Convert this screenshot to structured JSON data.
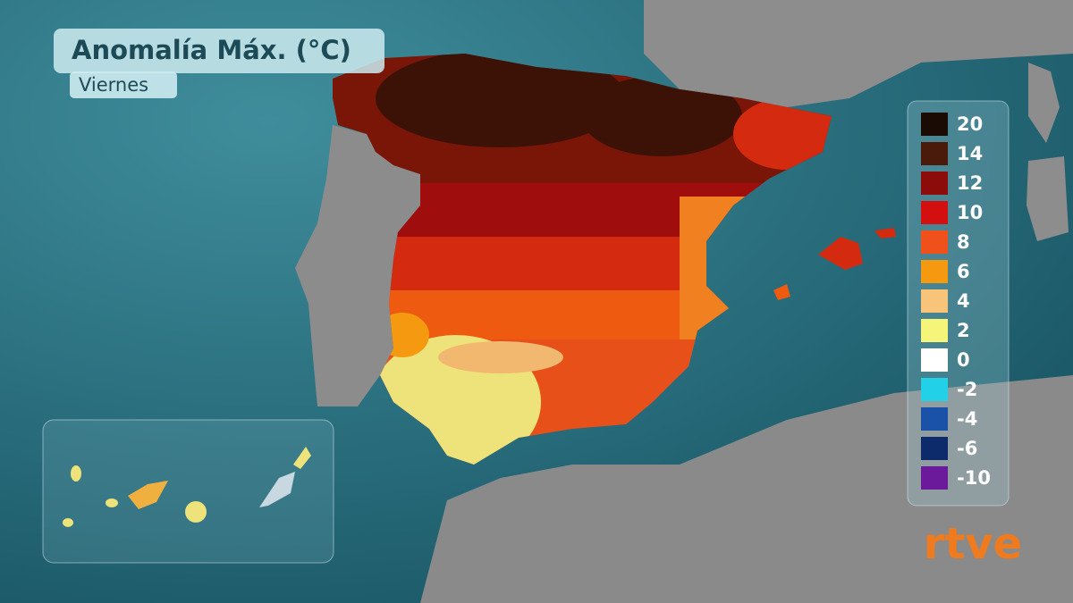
{
  "title": "Anomalía Máx. (°C)",
  "subtitle": "Viernes",
  "legend": [
    {
      "value": 20,
      "color": "#1a0b05"
    },
    {
      "value": 14,
      "color": "#4a1a0a"
    },
    {
      "value": 12,
      "color": "#8c0c0c"
    },
    {
      "value": 10,
      "color": "#d40f0f"
    },
    {
      "value": 8,
      "color": "#f0501a"
    },
    {
      "value": 6,
      "color": "#f59a10"
    },
    {
      "value": 4,
      "color": "#f8c47a"
    },
    {
      "value": 2,
      "color": "#f5f57a"
    },
    {
      "value": 0,
      "color": "#ffffff"
    },
    {
      "value": -2,
      "color": "#22d0e8"
    },
    {
      "value": -4,
      "color": "#1a52a8"
    },
    {
      "value": -6,
      "color": "#0d2a6a"
    },
    {
      "value": -10,
      "color": "#6a1a9a"
    }
  ],
  "logo": "rtve"
}
